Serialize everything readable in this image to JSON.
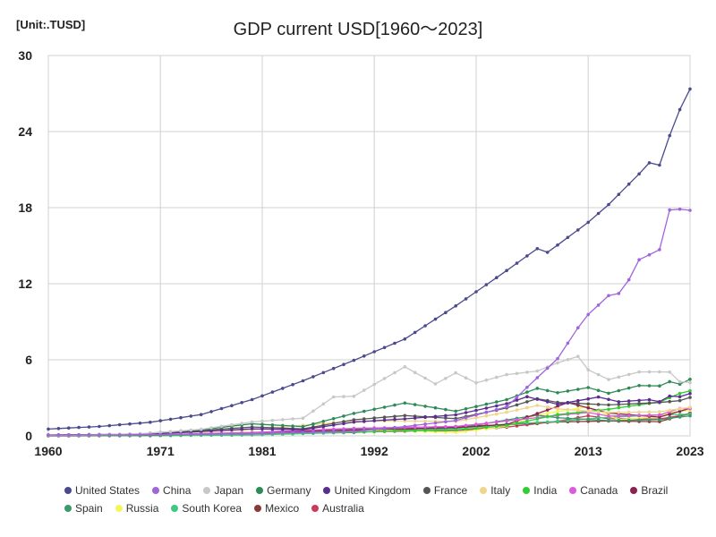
{
  "chart_data": {
    "type": "line",
    "title": "GDP current USD[1960～2023]",
    "unit_label": "[Unit:.TUSD]",
    "xlabel": "",
    "ylabel": "",
    "xlim": [
      1960,
      2023
    ],
    "ylim": [
      0,
      30
    ],
    "x_ticks": [
      "1960",
      "1971",
      "1981",
      "1992",
      "2002",
      "2013",
      "2023"
    ],
    "y_ticks": [
      "0",
      "6",
      "12",
      "18",
      "24",
      "30"
    ],
    "grid": true,
    "legend_position": "bottom",
    "series": [
      {
        "name": "United States",
        "color": "#4a4a8c",
        "x": [
          1960,
          1965,
          1970,
          1975,
          1980,
          1985,
          1990,
          1995,
          2000,
          2005,
          2008,
          2009,
          2010,
          2013,
          2015,
          2018,
          2019,
          2020,
          2021,
          2022,
          2023
        ],
        "values": [
          0.54,
          0.74,
          1.07,
          1.68,
          2.86,
          4.34,
          5.96,
          7.64,
          10.25,
          13.04,
          14.77,
          14.48,
          15.05,
          16.84,
          18.24,
          20.66,
          21.54,
          21.35,
          23.68,
          25.74,
          27.36
        ]
      },
      {
        "name": "China",
        "color": "#a064dc",
        "x": [
          1960,
          1970,
          1980,
          1990,
          1995,
          2000,
          2005,
          2008,
          2010,
          2012,
          2013,
          2015,
          2016,
          2017,
          2018,
          2019,
          2020,
          2021,
          2022,
          2023
        ],
        "values": [
          0.06,
          0.09,
          0.19,
          0.36,
          0.73,
          1.21,
          2.29,
          4.59,
          6.09,
          8.53,
          9.57,
          11.06,
          11.23,
          12.31,
          13.89,
          14.28,
          14.69,
          17.82,
          17.88,
          17.79
        ]
      },
      {
        "name": "Japan",
        "color": "#c8c8c8",
        "x": [
          1960,
          1965,
          1970,
          1975,
          1980,
          1985,
          1988,
          1990,
          1995,
          1998,
          2000,
          2002,
          2005,
          2008,
          2010,
          2012,
          2013,
          2015,
          2018,
          2020,
          2021,
          2022,
          2023
        ],
        "values": [
          0.04,
          0.09,
          0.21,
          0.52,
          1.1,
          1.4,
          3.07,
          3.13,
          5.45,
          4.1,
          4.97,
          4.18,
          4.83,
          5.11,
          5.76,
          6.27,
          5.21,
          4.44,
          5.04,
          5.05,
          5.03,
          4.26,
          4.21
        ]
      },
      {
        "name": "Germany",
        "color": "#2e8b57",
        "x": [
          1970,
          1975,
          1980,
          1985,
          1990,
          1995,
          2000,
          2005,
          2008,
          2010,
          2013,
          2015,
          2018,
          2020,
          2021,
          2022,
          2023
        ],
        "values": [
          0.22,
          0.49,
          0.95,
          0.73,
          1.77,
          2.59,
          1.95,
          2.86,
          3.75,
          3.4,
          3.81,
          3.36,
          3.97,
          3.94,
          4.28,
          4.08,
          4.46
        ]
      },
      {
        "name": "United Kingdom",
        "color": "#5a2d91",
        "x": [
          1960,
          1970,
          1980,
          1985,
          1990,
          1995,
          2000,
          2005,
          2007,
          2010,
          2014,
          2016,
          2019,
          2020,
          2021,
          2022,
          2023
        ],
        "values": [
          0.07,
          0.13,
          0.56,
          0.49,
          1.09,
          1.34,
          1.66,
          2.54,
          3.09,
          2.49,
          3.06,
          2.69,
          2.85,
          2.7,
          3.14,
          3.09,
          3.34
        ]
      },
      {
        "name": "France",
        "color": "#555555",
        "x": [
          1960,
          1970,
          1980,
          1985,
          1990,
          1995,
          2000,
          2005,
          2008,
          2010,
          2015,
          2020,
          2022,
          2023
        ],
        "values": [
          0.06,
          0.15,
          0.7,
          0.55,
          1.27,
          1.6,
          1.36,
          2.2,
          2.93,
          2.64,
          2.44,
          2.63,
          2.78,
          3.03
        ]
      },
      {
        "name": "Italy",
        "color": "#f0d68c",
        "x": [
          1960,
          1970,
          1980,
          1990,
          1995,
          2000,
          2005,
          2008,
          2010,
          2015,
          2020,
          2023
        ],
        "values": [
          0.04,
          0.11,
          0.48,
          1.18,
          1.17,
          1.14,
          1.86,
          2.4,
          2.13,
          1.84,
          1.9,
          2.25
        ]
      },
      {
        "name": "India",
        "color": "#32cd32",
        "x": [
          1960,
          1970,
          1980,
          1990,
          2000,
          2005,
          2010,
          2015,
          2020,
          2022,
          2023
        ],
        "values": [
          0.04,
          0.06,
          0.19,
          0.32,
          0.47,
          0.82,
          1.68,
          2.1,
          2.67,
          3.35,
          3.55
        ]
      },
      {
        "name": "Canada",
        "color": "#dc5adc",
        "x": [
          1960,
          1970,
          1980,
          1990,
          2000,
          2005,
          2010,
          2013,
          2015,
          2020,
          2022,
          2023
        ],
        "values": [
          0.04,
          0.09,
          0.27,
          0.6,
          0.74,
          1.17,
          1.62,
          1.84,
          1.56,
          1.65,
          2.16,
          2.14
        ]
      },
      {
        "name": "Brazil",
        "color": "#8b2252",
        "x": [
          1960,
          1970,
          1980,
          1990,
          2000,
          2005,
          2011,
          2015,
          2020,
          2023
        ],
        "values": [
          0.02,
          0.04,
          0.24,
          0.46,
          0.66,
          0.89,
          2.62,
          1.8,
          1.48,
          2.17
        ]
      },
      {
        "name": "Spain",
        "color": "#3a9a6a",
        "x": [
          1960,
          1970,
          1980,
          1990,
          2000,
          2008,
          2010,
          2015,
          2020,
          2023
        ],
        "values": [
          0.01,
          0.04,
          0.23,
          0.54,
          0.6,
          1.64,
          1.43,
          1.2,
          1.28,
          1.58
        ]
      },
      {
        "name": "Russia",
        "color": "#f5f55a",
        "x": [
          1989,
          1992,
          1995,
          2000,
          2005,
          2008,
          2013,
          2016,
          2020,
          2021,
          2023
        ],
        "values": [
          0.51,
          0.46,
          0.4,
          0.26,
          0.76,
          1.66,
          2.29,
          1.28,
          1.49,
          1.84,
          2.02
        ]
      },
      {
        "name": "South Korea",
        "color": "#40c880",
        "x": [
          1960,
          1970,
          1980,
          1990,
          2000,
          2005,
          2010,
          2015,
          2020,
          2023
        ],
        "values": [
          0.0,
          0.01,
          0.07,
          0.28,
          0.58,
          0.93,
          1.14,
          1.47,
          1.64,
          1.71
        ]
      },
      {
        "name": "Mexico",
        "color": "#8b3a3a",
        "x": [
          1960,
          1970,
          1980,
          1990,
          2000,
          2005,
          2010,
          2015,
          2020,
          2023
        ],
        "values": [
          0.01,
          0.04,
          0.2,
          0.26,
          0.74,
          0.88,
          1.1,
          1.17,
          1.12,
          1.79
        ]
      },
      {
        "name": "Australia",
        "color": "#c83c5a",
        "x": [
          1960,
          1970,
          1980,
          1990,
          2000,
          2005,
          2010,
          2013,
          2015,
          2020,
          2023
        ],
        "values": [
          0.02,
          0.04,
          0.16,
          0.31,
          0.42,
          0.69,
          1.15,
          1.58,
          1.35,
          1.33,
          1.72
        ]
      }
    ]
  }
}
